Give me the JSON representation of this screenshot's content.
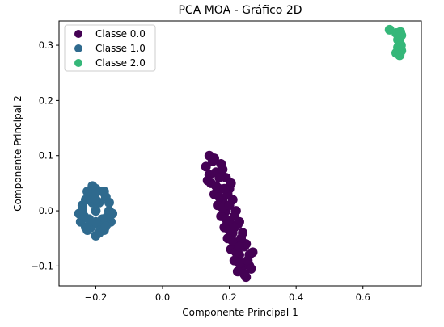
{
  "chart_data": {
    "type": "scatter",
    "title": "PCA MOA - Gráfico 2D",
    "xlabel": "Componente Principal 1",
    "ylabel": "Componente Principal 2",
    "xlim": [
      -0.31,
      0.775
    ],
    "ylim": [
      -0.136,
      0.344
    ],
    "xticks": [
      -0.2,
      0.0,
      0.2,
      0.4,
      0.6
    ],
    "xtick_labels": [
      "−0.2",
      "0.0",
      "0.2",
      "0.4",
      "0.6"
    ],
    "yticks": [
      -0.1,
      0.0,
      0.1,
      0.2,
      0.3
    ],
    "ytick_labels": [
      "−0.1",
      "0.0",
      "0.1",
      "0.2",
      "0.3"
    ],
    "grid": false,
    "legend_position": "top-left",
    "series": [
      {
        "name": "Classe 0.0",
        "color": "#440154",
        "points": [
          [
            0.13,
            0.08
          ],
          [
            0.14,
            0.1
          ],
          [
            0.16,
            0.07
          ],
          [
            0.145,
            0.05
          ],
          [
            0.17,
            0.04
          ],
          [
            0.155,
            0.03
          ],
          [
            0.18,
            0.02
          ],
          [
            0.165,
            0.01
          ],
          [
            0.19,
            0.0
          ],
          [
            0.175,
            -0.01
          ],
          [
            0.2,
            -0.02
          ],
          [
            0.185,
            -0.03
          ],
          [
            0.21,
            -0.04
          ],
          [
            0.195,
            -0.05
          ],
          [
            0.22,
            -0.06
          ],
          [
            0.205,
            -0.07
          ],
          [
            0.23,
            -0.08
          ],
          [
            0.215,
            -0.09
          ],
          [
            0.24,
            -0.1
          ],
          [
            0.225,
            -0.11
          ],
          [
            0.25,
            -0.12
          ],
          [
            0.235,
            -0.095
          ],
          [
            0.26,
            -0.08
          ],
          [
            0.245,
            -0.065
          ],
          [
            0.27,
            -0.075
          ],
          [
            0.15,
            0.09
          ],
          [
            0.175,
            0.085
          ],
          [
            0.19,
            0.06
          ],
          [
            0.2,
            0.04
          ],
          [
            0.21,
            0.02
          ],
          [
            0.22,
            0.0
          ],
          [
            0.23,
            -0.02
          ],
          [
            0.24,
            -0.04
          ],
          [
            0.25,
            -0.06
          ],
          [
            0.26,
            -0.1
          ],
          [
            0.14,
            0.065
          ],
          [
            0.16,
            0.045
          ],
          [
            0.17,
            0.025
          ],
          [
            0.18,
            0.005
          ],
          [
            0.19,
            -0.015
          ],
          [
            0.2,
            -0.035
          ],
          [
            0.21,
            -0.055
          ],
          [
            0.22,
            -0.075
          ],
          [
            0.23,
            -0.095
          ],
          [
            0.245,
            -0.115
          ],
          [
            0.155,
            0.095
          ],
          [
            0.18,
            0.075
          ],
          [
            0.195,
            0.03
          ],
          [
            0.215,
            -0.01
          ],
          [
            0.235,
            -0.05
          ],
          [
            0.255,
            -0.09
          ],
          [
            0.135,
            0.055
          ],
          [
            0.265,
            -0.105
          ],
          [
            0.205,
            0.05
          ],
          [
            0.225,
            -0.025
          ],
          [
            0.17,
            0.06
          ],
          [
            0.185,
            0.04
          ],
          [
            0.2,
            0.01
          ],
          [
            0.215,
            -0.03
          ],
          [
            0.23,
            -0.065
          ]
        ]
      },
      {
        "name": "Classe 1.0",
        "color": "#2f6a8e",
        "points": [
          [
            -0.2,
            0.04
          ],
          [
            -0.22,
            0.03
          ],
          [
            -0.18,
            0.035
          ],
          [
            -0.24,
            0.01
          ],
          [
            -0.16,
            0.015
          ],
          [
            -0.25,
            -0.005
          ],
          [
            -0.15,
            -0.005
          ],
          [
            -0.245,
            -0.02
          ],
          [
            -0.155,
            -0.02
          ],
          [
            -0.225,
            -0.035
          ],
          [
            -0.175,
            -0.035
          ],
          [
            -0.2,
            -0.045
          ],
          [
            -0.21,
            0.045
          ],
          [
            -0.19,
            -0.04
          ],
          [
            -0.23,
            0.02
          ],
          [
            -0.17,
            0.025
          ],
          [
            -0.235,
            -0.01
          ],
          [
            -0.165,
            -0.01
          ],
          [
            -0.215,
            -0.03
          ],
          [
            -0.185,
            -0.03
          ],
          [
            -0.2,
            0.0
          ],
          [
            -0.21,
            0.015
          ],
          [
            -0.19,
            0.015
          ],
          [
            -0.22,
            -0.015
          ],
          [
            -0.18,
            -0.015
          ],
          [
            -0.205,
            0.03
          ],
          [
            -0.195,
            -0.025
          ],
          [
            -0.24,
            0.0
          ],
          [
            -0.16,
            0.0
          ],
          [
            -0.2,
            0.02
          ],
          [
            -0.2,
            -0.02
          ],
          [
            -0.225,
            0.035
          ],
          [
            -0.175,
            0.035
          ],
          [
            -0.23,
            -0.03
          ],
          [
            -0.17,
            -0.028
          ]
        ]
      },
      {
        "name": "Classe 2.0",
        "color": "#35b779",
        "points": [
          [
            0.68,
            0.328
          ],
          [
            0.7,
            0.322
          ],
          [
            0.715,
            0.318
          ],
          [
            0.705,
            0.31
          ],
          [
            0.71,
            0.304
          ],
          [
            0.705,
            0.296
          ],
          [
            0.715,
            0.29
          ],
          [
            0.7,
            0.286
          ],
          [
            0.71,
            0.282
          ],
          [
            0.712,
            0.324
          ],
          [
            0.708,
            0.315
          ],
          [
            0.714,
            0.3
          ]
        ]
      }
    ]
  }
}
